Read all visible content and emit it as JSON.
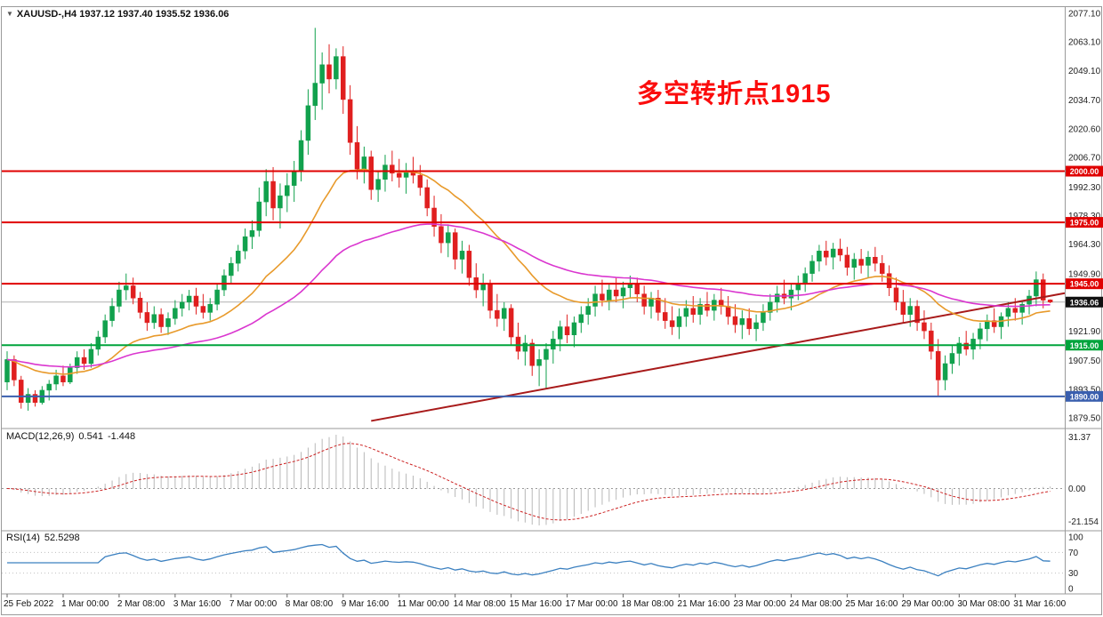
{
  "window": {
    "dropdown_icon": "▼",
    "title": "XAUUSD-,H4 1937.12 1937.40 1935.52 1936.06"
  },
  "chart_data": {
    "type": "candlestick",
    "symbol": "XAUUSD-",
    "timeframe": "H4",
    "current_bar": {
      "open": "1937.12",
      "high": "1937.40",
      "low": "1935.52",
      "close": "1936.06"
    },
    "annotation": {
      "text": "多空转折点1915",
      "color": "#fb0d0d"
    },
    "colors": {
      "up": "#11a14d",
      "down": "#e01f1f",
      "ma_fast": "#e89a2b",
      "ma_slow": "#da36cf",
      "trendline": "#a81a1a",
      "level_red": "#e00000",
      "level_green": "#00a43c",
      "level_blue": "#3a5fae",
      "current_tag": "#111111",
      "macd_hist": "#b8b8b8",
      "macd_signal": "#cc2222",
      "rsi_line": "#3b80c0"
    },
    "y_axis": {
      "min": 1879.5,
      "max": 2077.1,
      "labels": [
        "2077.10",
        "2063.10",
        "2049.10",
        "2034.70",
        "2020.60",
        "2006.70",
        "1992.30",
        "1978.30",
        "1964.30",
        "1949.90",
        "1921.90",
        "1907.50",
        "1893.50",
        "1879.50"
      ]
    },
    "x_axis": {
      "labels": [
        {
          "t": "25 Feb 2022",
          "i": 0
        },
        {
          "t": "1 Mar 00:00",
          "i": 8
        },
        {
          "t": "2 Mar 08:00",
          "i": 16
        },
        {
          "t": "3 Mar 16:00",
          "i": 24
        },
        {
          "t": "7 Mar 00:00",
          "i": 32
        },
        {
          "t": "8 Mar 08:00",
          "i": 40
        },
        {
          "t": "9 Mar 16:00",
          "i": 48
        },
        {
          "t": "11 Mar 00:00",
          "i": 56
        },
        {
          "t": "14 Mar 08:00",
          "i": 64
        },
        {
          "t": "15 Mar 16:00",
          "i": 72
        },
        {
          "t": "17 Mar 00:00",
          "i": 80
        },
        {
          "t": "18 Mar 08:00",
          "i": 88
        },
        {
          "t": "21 Mar 16:00",
          "i": 96
        },
        {
          "t": "23 Mar 00:00",
          "i": 104
        },
        {
          "t": "24 Mar 08:00",
          "i": 112
        },
        {
          "t": "25 Mar 16:00",
          "i": 120
        },
        {
          "t": "29 Mar 00:00",
          "i": 128
        },
        {
          "t": "30 Mar 08:00",
          "i": 136
        },
        {
          "t": "31 Mar 16:00",
          "i": 144
        }
      ]
    },
    "hlines": [
      {
        "price": 2000.0,
        "label": "2000.00",
        "color": "#e00000",
        "style": "level"
      },
      {
        "price": 1975.0,
        "label": "1975.00",
        "color": "#e00000",
        "style": "level"
      },
      {
        "price": 1945.0,
        "label": "1945.00",
        "color": "#e00000",
        "style": "level"
      },
      {
        "price": 1915.0,
        "label": "1915.00",
        "color": "#00a43c",
        "style": "level"
      },
      {
        "price": 1890.0,
        "label": "1890.00",
        "color": "#3a5fae",
        "style": "level"
      },
      {
        "price": 1936.06,
        "label": "1936.06",
        "color": "#111111",
        "style": "current"
      }
    ],
    "moving_averages": [
      {
        "name": "ma-fast",
        "period": 22,
        "color": "#e89a2b"
      },
      {
        "name": "ma-slow",
        "period": 55,
        "color": "#da36cf"
      }
    ],
    "trendline": {
      "from_index": 52,
      "from_price": 1878,
      "to_index": 152,
      "to_price": 1941,
      "color": "#a81a1a"
    },
    "macd": {
      "label": "MACD(12,26,9)",
      "value_main": "0.541",
      "value_signal": "-1.448",
      "fast": 12,
      "slow": 26,
      "signal": 9,
      "axis_labels": [
        "31.37",
        "0.00",
        "-21.154"
      ]
    },
    "rsi": {
      "label": "RSI(14)",
      "value": "52.5298",
      "period": 14,
      "axis_labels": [
        "100",
        "70",
        "30",
        "0"
      ],
      "axis_values": [
        100,
        70,
        30,
        0
      ],
      "levels": [
        70,
        30
      ]
    },
    "candles": [
      [
        1897,
        1912,
        1893,
        1908
      ],
      [
        1908,
        1910,
        1895,
        1898
      ],
      [
        1898,
        1900,
        1884,
        1887
      ],
      [
        1887,
        1894,
        1883,
        1891
      ],
      [
        1891,
        1893,
        1885,
        1887
      ],
      [
        1887,
        1895,
        1886,
        1893
      ],
      [
        1893,
        1898,
        1888,
        1896
      ],
      [
        1896,
        1903,
        1893,
        1900
      ],
      [
        1900,
        1905,
        1895,
        1897
      ],
      [
        1897,
        1906,
        1896,
        1904
      ],
      [
        1904,
        1912,
        1901,
        1909
      ],
      [
        1909,
        1913,
        1903,
        1906
      ],
      [
        1906,
        1916,
        1904,
        1913
      ],
      [
        1913,
        1922,
        1910,
        1919
      ],
      [
        1919,
        1930,
        1916,
        1927
      ],
      [
        1927,
        1938,
        1924,
        1934
      ],
      [
        1934,
        1946,
        1931,
        1942
      ],
      [
        1942,
        1950,
        1937,
        1944
      ],
      [
        1944,
        1948,
        1935,
        1938
      ],
      [
        1938,
        1941,
        1928,
        1931
      ],
      [
        1931,
        1936,
        1922,
        1926
      ],
      [
        1926,
        1934,
        1923,
        1930
      ],
      [
        1930,
        1933,
        1921,
        1924
      ],
      [
        1924,
        1931,
        1920,
        1928
      ],
      [
        1928,
        1937,
        1925,
        1933
      ],
      [
        1933,
        1940,
        1929,
        1936
      ],
      [
        1936,
        1942,
        1932,
        1939
      ],
      [
        1939,
        1943,
        1930,
        1934
      ],
      [
        1934,
        1940,
        1928,
        1931
      ],
      [
        1931,
        1938,
        1927,
        1935
      ],
      [
        1935,
        1945,
        1932,
        1942
      ],
      [
        1942,
        1952,
        1939,
        1949
      ],
      [
        1949,
        1958,
        1945,
        1955
      ],
      [
        1955,
        1964,
        1951,
        1961
      ],
      [
        1961,
        1972,
        1957,
        1968
      ],
      [
        1968,
        1976,
        1962,
        1971
      ],
      [
        1971,
        1992,
        1968,
        1985
      ],
      [
        1985,
        2001,
        1978,
        1995
      ],
      [
        1995,
        2002,
        1976,
        1982
      ],
      [
        1982,
        1994,
        1972,
        1988
      ],
      [
        1988,
        1999,
        1980,
        1993
      ],
      [
        1993,
        2005,
        1985,
        2000
      ],
      [
        2000,
        2020,
        1995,
        2015
      ],
      [
        2015,
        2040,
        2008,
        2032
      ],
      [
        2032,
        2070,
        2025,
        2043
      ],
      [
        2043,
        2058,
        2030,
        2052
      ],
      [
        2052,
        2062,
        2038,
        2045
      ],
      [
        2045,
        2060,
        2040,
        2056
      ],
      [
        2056,
        2061,
        2028,
        2035
      ],
      [
        2035,
        2042,
        2008,
        2014
      ],
      [
        2014,
        2022,
        1996,
        2001
      ],
      [
        2001,
        2012,
        1994,
        2007
      ],
      [
        2007,
        2010,
        1986,
        1991
      ],
      [
        1991,
        2000,
        1985,
        1996
      ],
      [
        1996,
        2008,
        1990,
        2003
      ],
      [
        2003,
        2010,
        1995,
        1999
      ],
      [
        1999,
        2006,
        1992,
        1997
      ],
      [
        1997,
        2004,
        1989,
        2000
      ],
      [
        2000,
        2007,
        1994,
        1998
      ],
      [
        1998,
        2003,
        1988,
        1992
      ],
      [
        1992,
        1996,
        1978,
        1982
      ],
      [
        1982,
        1988,
        1968,
        1973
      ],
      [
        1973,
        1979,
        1960,
        1965
      ],
      [
        1965,
        1974,
        1958,
        1970
      ],
      [
        1970,
        1972,
        1952,
        1957
      ],
      [
        1957,
        1966,
        1950,
        1961
      ],
      [
        1961,
        1964,
        1944,
        1948
      ],
      [
        1948,
        1955,
        1938,
        1942
      ],
      [
        1942,
        1950,
        1934,
        1945
      ],
      [
        1945,
        1947,
        1928,
        1932
      ],
      [
        1932,
        1940,
        1924,
        1928
      ],
      [
        1928,
        1936,
        1922,
        1933
      ],
      [
        1933,
        1935,
        1915,
        1919
      ],
      [
        1919,
        1926,
        1908,
        1912
      ],
      [
        1912,
        1920,
        1905,
        1916
      ],
      [
        1916,
        1918,
        1900,
        1905
      ],
      [
        1905,
        1913,
        1895,
        1908
      ],
      [
        1908,
        1916,
        1894,
        1913
      ],
      [
        1913,
        1922,
        1906,
        1918
      ],
      [
        1918,
        1927,
        1912,
        1924
      ],
      [
        1924,
        1930,
        1916,
        1920
      ],
      [
        1920,
        1929,
        1914,
        1926
      ],
      [
        1926,
        1934,
        1921,
        1930
      ],
      [
        1930,
        1938,
        1925,
        1934
      ],
      [
        1934,
        1944,
        1929,
        1940
      ],
      [
        1940,
        1947,
        1934,
        1937
      ],
      [
        1937,
        1945,
        1932,
        1942
      ],
      [
        1942,
        1948,
        1936,
        1939
      ],
      [
        1939,
        1946,
        1933,
        1943
      ],
      [
        1943,
        1949,
        1938,
        1945
      ],
      [
        1945,
        1948,
        1936,
        1940
      ],
      [
        1940,
        1944,
        1930,
        1934
      ],
      [
        1934,
        1941,
        1928,
        1938
      ],
      [
        1938,
        1942,
        1927,
        1931
      ],
      [
        1931,
        1938,
        1923,
        1927
      ],
      [
        1927,
        1934,
        1920,
        1924
      ],
      [
        1924,
        1933,
        1918,
        1929
      ],
      [
        1929,
        1937,
        1924,
        1933
      ],
      [
        1933,
        1939,
        1926,
        1930
      ],
      [
        1930,
        1938,
        1925,
        1935
      ],
      [
        1935,
        1941,
        1929,
        1932
      ],
      [
        1932,
        1940,
        1927,
        1937
      ],
      [
        1937,
        1943,
        1930,
        1934
      ],
      [
        1934,
        1939,
        1925,
        1929
      ],
      [
        1929,
        1935,
        1921,
        1925
      ],
      [
        1925,
        1932,
        1918,
        1928
      ],
      [
        1928,
        1933,
        1920,
        1923
      ],
      [
        1923,
        1930,
        1917,
        1926
      ],
      [
        1926,
        1935,
        1922,
        1931
      ],
      [
        1931,
        1940,
        1927,
        1936
      ],
      [
        1936,
        1944,
        1931,
        1940
      ],
      [
        1940,
        1947,
        1935,
        1938
      ],
      [
        1938,
        1945,
        1932,
        1942
      ],
      [
        1942,
        1949,
        1937,
        1945
      ],
      [
        1945,
        1953,
        1941,
        1950
      ],
      [
        1950,
        1959,
        1946,
        1956
      ],
      [
        1956,
        1964,
        1951,
        1961
      ],
      [
        1961,
        1966,
        1954,
        1958
      ],
      [
        1958,
        1965,
        1952,
        1962
      ],
      [
        1962,
        1967,
        1956,
        1959
      ],
      [
        1959,
        1963,
        1949,
        1953
      ],
      [
        1953,
        1960,
        1947,
        1957
      ],
      [
        1957,
        1962,
        1950,
        1954
      ],
      [
        1954,
        1961,
        1948,
        1958
      ],
      [
        1958,
        1963,
        1951,
        1955
      ],
      [
        1955,
        1959,
        1946,
        1950
      ],
      [
        1950,
        1954,
        1939,
        1943
      ],
      [
        1943,
        1948,
        1932,
        1936
      ],
      [
        1936,
        1942,
        1926,
        1930
      ],
      [
        1930,
        1938,
        1924,
        1934
      ],
      [
        1934,
        1937,
        1922,
        1926
      ],
      [
        1926,
        1932,
        1918,
        1922
      ],
      [
        1922,
        1926,
        1908,
        1912
      ],
      [
        1912,
        1918,
        1890,
        1898
      ],
      [
        1898,
        1910,
        1893,
        1906
      ],
      [
        1906,
        1915,
        1901,
        1911
      ],
      [
        1911,
        1919,
        1905,
        1916
      ],
      [
        1916,
        1922,
        1910,
        1913
      ],
      [
        1913,
        1921,
        1908,
        1918
      ],
      [
        1918,
        1926,
        1913,
        1923
      ],
      [
        1923,
        1930,
        1917,
        1927
      ],
      [
        1927,
        1933,
        1921,
        1924
      ],
      [
        1924,
        1931,
        1918,
        1929
      ],
      [
        1929,
        1936,
        1924,
        1933
      ],
      [
        1933,
        1938,
        1927,
        1931
      ],
      [
        1931,
        1937,
        1925,
        1935
      ],
      [
        1935,
        1942,
        1930,
        1939
      ],
      [
        1939,
        1951,
        1934,
        1947
      ],
      [
        1947,
        1950,
        1933,
        1937
      ],
      [
        1937.12,
        1937.4,
        1935.52,
        1936.06
      ]
    ]
  }
}
